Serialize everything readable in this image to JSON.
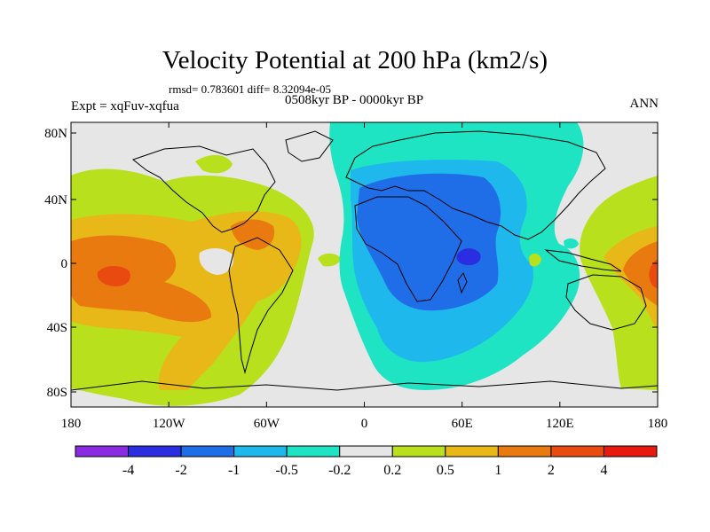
{
  "title": "Velocity Potential at 200 hPa (km2/s)",
  "stats_line": "rmsd= 0.783601 diff= 8.32094e-05",
  "left_label": "Expt = xqFuv-xqfua",
  "center_label": "0508kyr BP - 0000kyr BP",
  "right_label": "ANN",
  "axes": {
    "y_ticks": [
      "80N",
      "40N",
      "0",
      "40S",
      "80S"
    ],
    "x_ticks": [
      "180",
      "120W",
      "60W",
      "0",
      "60E",
      "120E",
      "180"
    ]
  },
  "colorbar": {
    "labels": [
      "-4",
      "-2",
      "-1",
      "-0.5",
      "-0.2",
      "0.2",
      "0.5",
      "1",
      "2",
      "4"
    ],
    "colors": [
      "#8a2be2",
      "#2a2ee0",
      "#1f6ee8",
      "#1eb8ec",
      "#1fe4c4",
      "#e6e6e6",
      "#b8e01c",
      "#e8b818",
      "#e87a10",
      "#e84a10",
      "#e81a10"
    ]
  },
  "field_colors": {
    "neutral": "#e6e6e6",
    "teal": "#1fe4c4",
    "cyan": "#1eb8ec",
    "blue": "#1f6ee8",
    "deep_blue": "#2a2ee0",
    "lime": "#b8e01c",
    "yellow": "#e8b818",
    "orange": "#e87a10",
    "red_orange": "#e84a10",
    "coast": "#000000"
  }
}
